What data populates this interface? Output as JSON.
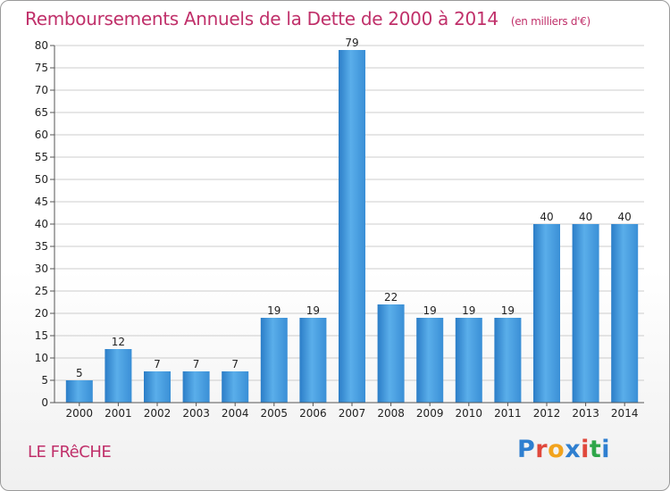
{
  "header": {
    "title": "Remboursements Annuels de la Dette de 2000 à 2014",
    "subtitle": "(en milliers d'€)"
  },
  "footer": {
    "commune": "LE FRêCHE",
    "logo": {
      "letters": [
        "P",
        "r",
        "o",
        "x",
        "i",
        "t",
        "i"
      ],
      "colors": [
        "#2f7fd0",
        "#e0483c",
        "#f2a31d",
        "#2f7fd0",
        "#e0483c",
        "#2fa64a",
        "#2f7fd0"
      ]
    }
  },
  "chart_data": {
    "type": "bar",
    "categories": [
      "2000",
      "2001",
      "2002",
      "2003",
      "2004",
      "2005",
      "2006",
      "2007",
      "2008",
      "2009",
      "2010",
      "2011",
      "2012",
      "2013",
      "2014"
    ],
    "values": [
      5,
      12,
      7,
      7,
      7,
      19,
      19,
      79,
      22,
      19,
      19,
      19,
      40,
      40,
      40
    ],
    "data_labels": [
      "5",
      "12",
      "7",
      "7",
      "7",
      "19",
      "19",
      "79",
      "22",
      "19",
      "19",
      "19",
      "40",
      "40",
      "40"
    ],
    "yticks": [
      0,
      5,
      10,
      15,
      20,
      25,
      30,
      35,
      40,
      45,
      50,
      55,
      60,
      65,
      70,
      75,
      80
    ],
    "ylim": [
      0,
      80
    ],
    "grid": true,
    "bar_color": "#3d94dc"
  }
}
